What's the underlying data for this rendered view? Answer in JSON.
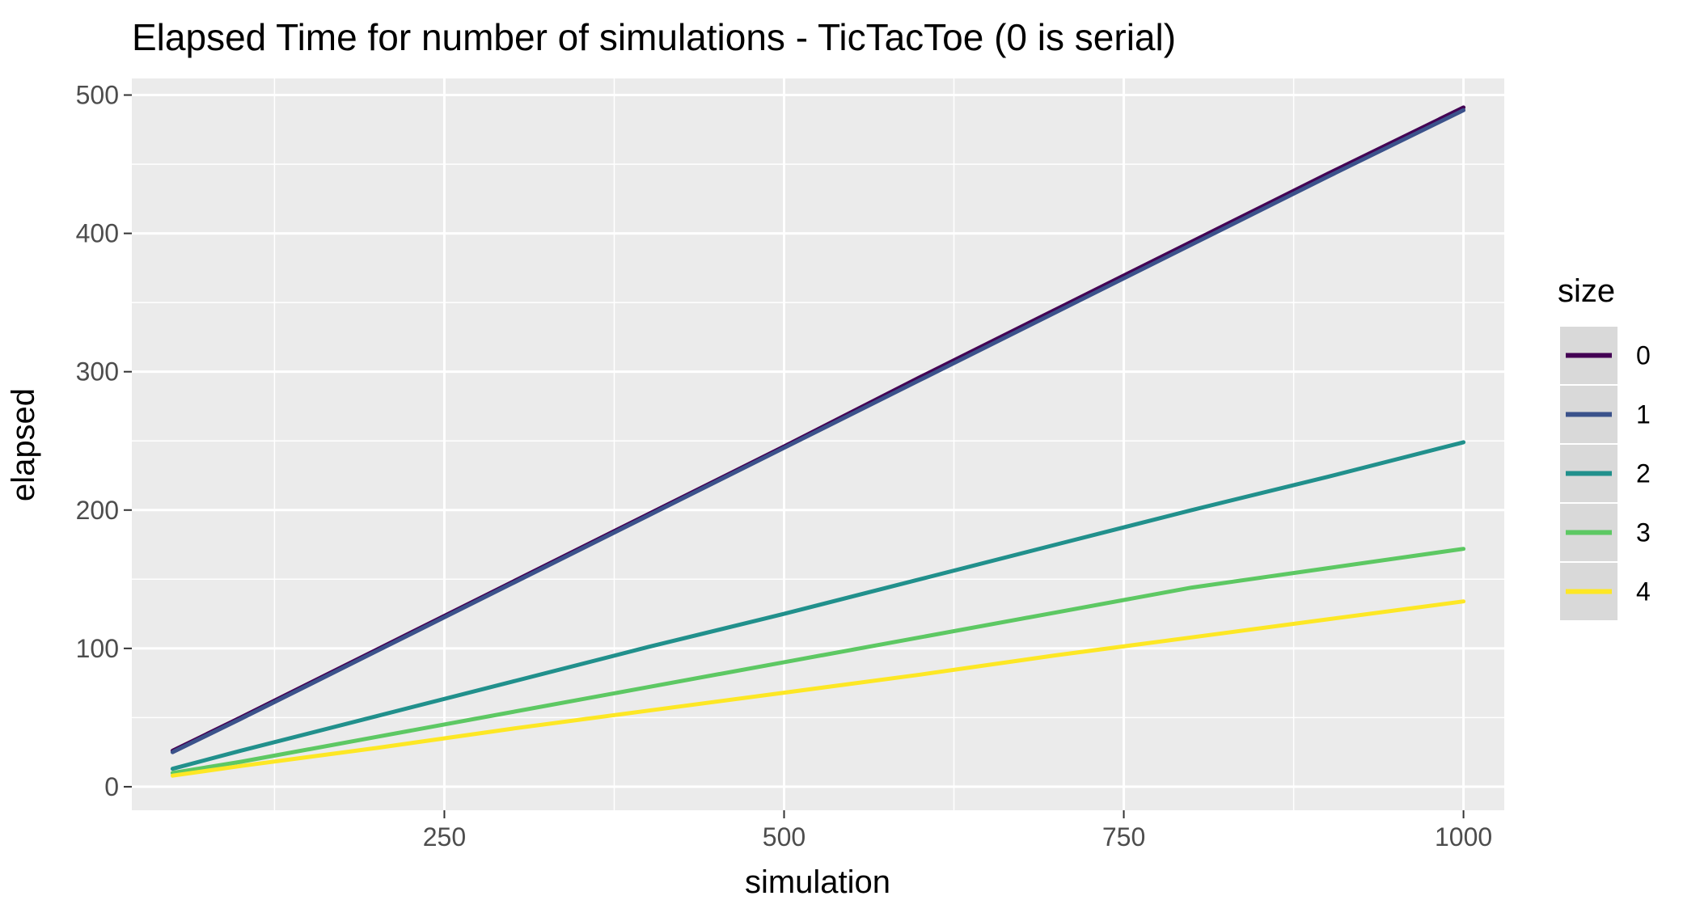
{
  "chart_data": {
    "type": "line",
    "title": "Elapsed Time for number of simulations - TicTacToe (0 is serial)",
    "xlabel": "simulation",
    "ylabel": "elapsed",
    "xlim": [
      20,
      1030
    ],
    "ylim": [
      -17,
      512
    ],
    "x_ticks": [
      250,
      500,
      750,
      1000
    ],
    "x_minor_ticks": [
      125,
      375,
      625,
      875
    ],
    "y_ticks": [
      0,
      100,
      200,
      300,
      400,
      500
    ],
    "y_minor_ticks": [
      50,
      150,
      250,
      350,
      450
    ],
    "grid": true,
    "legend": {
      "title": "size",
      "position": "right"
    },
    "x": [
      50,
      100,
      200,
      300,
      400,
      500,
      600,
      700,
      800,
      900,
      1000
    ],
    "series": [
      {
        "name": "0",
        "color": "#440154",
        "values": [
          26,
          50,
          99,
          148,
          197,
          246,
          296,
          345,
          394,
          443,
          491
        ]
      },
      {
        "name": "1",
        "color": "#3B528B",
        "values": [
          25,
          49,
          98,
          147,
          196,
          245,
          294,
          343,
          392,
          441,
          489
        ]
      },
      {
        "name": "2",
        "color": "#21908C",
        "values": [
          13,
          26,
          51,
          76,
          101,
          125,
          150,
          175,
          200,
          224,
          249
        ]
      },
      {
        "name": "3",
        "color": "#5DC863",
        "values": [
          10,
          18,
          36,
          54,
          72,
          90,
          108,
          126,
          144,
          158,
          172
        ]
      },
      {
        "name": "4",
        "color": "#FDE725",
        "values": [
          8,
          15,
          28,
          42,
          55,
          68,
          81,
          95,
          108,
          121,
          134
        ]
      }
    ]
  }
}
